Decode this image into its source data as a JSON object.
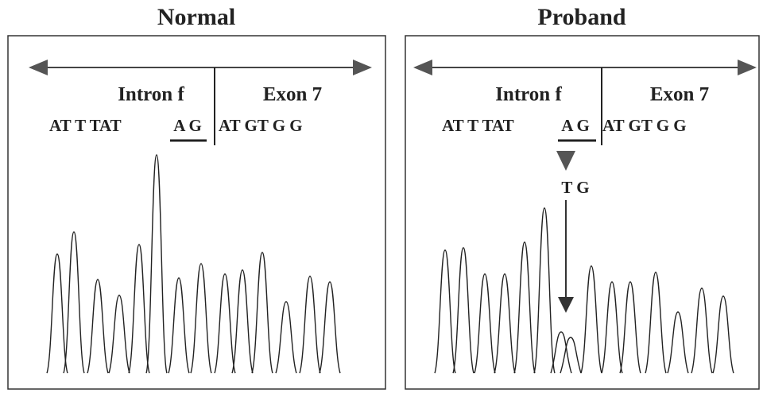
{
  "panels": [
    {
      "title": "Normal",
      "intron": "Intron f",
      "exon": "Exon 7",
      "sequence_intron": "AT T TAT",
      "splice_site": "A G",
      "sequence_exon": "AT GT G G"
    },
    {
      "title": "Proband",
      "intron": "Intron f",
      "exon": "Exon 7",
      "sequence_intron": "AT T TAT",
      "splice_site": "A G",
      "sequence_exon": "AT GT G G",
      "mutation": "T G"
    }
  ]
}
